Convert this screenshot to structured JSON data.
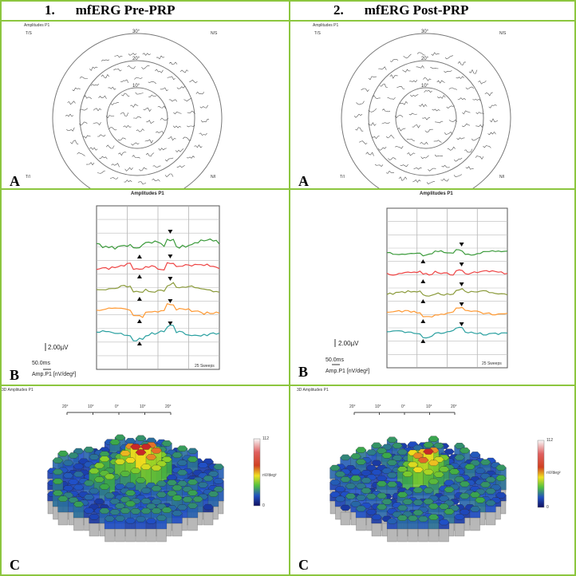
{
  "columns": [
    {
      "num": "1.",
      "title": "mfERG Pre-PRP"
    },
    {
      "num": "2.",
      "title": "mfERG Post-PRP"
    }
  ],
  "row_letters": [
    "A",
    "B",
    "C"
  ],
  "trace_array": {
    "heading": "Amplitudes P1",
    "ring_labels": [
      "30°",
      "20°",
      "10°"
    ],
    "corner_labels": {
      "top_left": "T/S",
      "top_right": "N/S",
      "bottom_left": "T/I",
      "bottom_right": "N/I"
    }
  },
  "ring_plot": {
    "heading": "Amplitudes P1",
    "scale_voltage": "2.00µV",
    "scale_time": "50.0ms",
    "amp_label": "Amp.P1 [nV/deg²]",
    "sweep_note": "25 Sweeps",
    "trace_colors": [
      "#3a9a3a",
      "#ee4444",
      "#8a9a3a",
      "#ff9933",
      "#2aa0a0"
    ]
  },
  "topography_3d": {
    "heading": "3D Amplitudes P1",
    "axis_ticks": [
      "20°",
      "10°",
      "0°",
      "10°",
      "20°"
    ],
    "colorbar_max": "112",
    "colorbar_min": "0",
    "colorbar_unit": "nV/deg²"
  }
}
